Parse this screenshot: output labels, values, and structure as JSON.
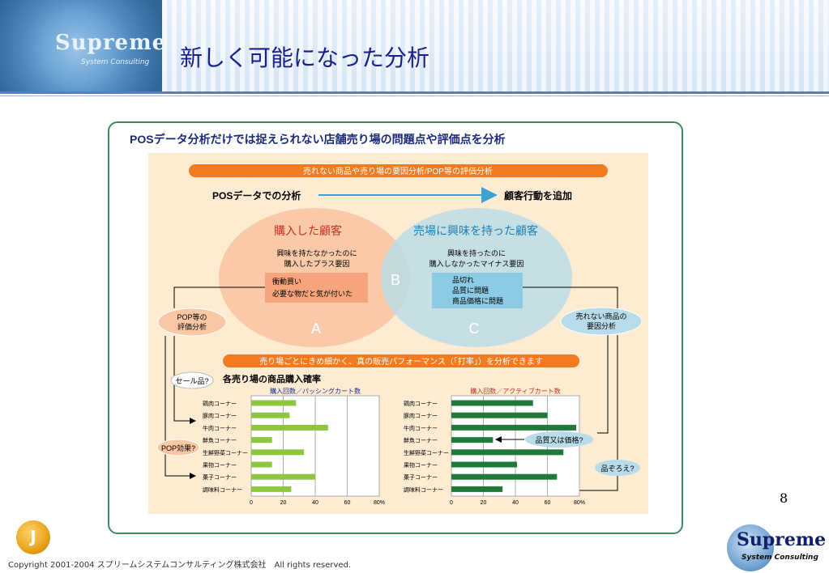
{
  "header": {
    "brand": "Supreme",
    "brand_sub": "System Consulting",
    "title": "新しく可能になった分析"
  },
  "figure": {
    "heading": "POSデータ分析だけでは捉えられない店舗売り場の問題点や評価点を分析",
    "banner1": "売れない商品や売り場の要因分析/POP等の評価分析",
    "flow_left": "POSデータでの分析",
    "flow_right": "顧客行動を追加",
    "venn_left_title": "購入した顧客",
    "venn_right_title": "売場に興味を持った顧客",
    "venn_left_text1": "興味を持たなかったのに",
    "venn_left_text2": "購入したプラス要因",
    "venn_left_box1": "衝動買い",
    "venn_left_box2": "必要な物だと気が付いた",
    "venn_right_text1": "興味を持ったのに",
    "venn_right_text2": "購入しなかったマイナス要因",
    "venn_right_box1": "品切れ",
    "venn_right_box2": "品質に問題",
    "venn_right_box3": "商品価格に問題",
    "label_a": "A",
    "label_b": "B",
    "label_c": "C",
    "pop_eval1": "POP等の",
    "pop_eval2": "評価分析",
    "unsold1": "売れない商品の",
    "unsold2": "要因分析",
    "banner2": "売り場ごとにきめ細かく、真の販売パフォーマンス（「打率」）を分析できます",
    "chart_section_title": "各売り場の商品購入確率",
    "sale_label": "セール品?",
    "pop_effect": "POP効果?",
    "quality_note": "品質又は価格?",
    "assort_note": "品ぞろえ?"
  },
  "chart_data": [
    {
      "type": "bar",
      "title": "購入回数／パッシングカート数",
      "categories": [
        "鶏肉コーナー",
        "豚肉コーナー",
        "牛肉コーナー",
        "鮮魚コーナー",
        "生鮮野菜コーナー",
        "果物コーナー",
        "菓子コーナー",
        "調味料コーナー"
      ],
      "values": [
        28,
        24,
        48,
        13,
        33,
        13,
        40,
        25
      ],
      "xlim": [
        0,
        80
      ],
      "ticks": [
        "0",
        "20",
        "40",
        "60",
        "80%"
      ],
      "color": "#8ec63f"
    },
    {
      "type": "bar",
      "title": "購入回数／アクティブカート数",
      "categories": [
        "鶏肉コーナー",
        "豚肉コーナー",
        "牛肉コーナー",
        "鮮魚コーナー",
        "生鮮野菜コーナー",
        "果物コーナー",
        "菓子コーナー",
        "調味料コーナー"
      ],
      "values": [
        51,
        60,
        78,
        26,
        70,
        41,
        66,
        32
      ],
      "xlim": [
        0,
        80
      ],
      "ticks": [
        "0",
        "20",
        "40",
        "60",
        "80%"
      ],
      "color": "#1f7a3a"
    }
  ],
  "page_number": "8",
  "footer": {
    "copyright": "Copyright 2001-2004 スプリームシステムコンサルティング株式会社　All rights reserved.",
    "logo_mark": "J",
    "brand": "Supreme",
    "brand_sub": "System Consulting"
  }
}
